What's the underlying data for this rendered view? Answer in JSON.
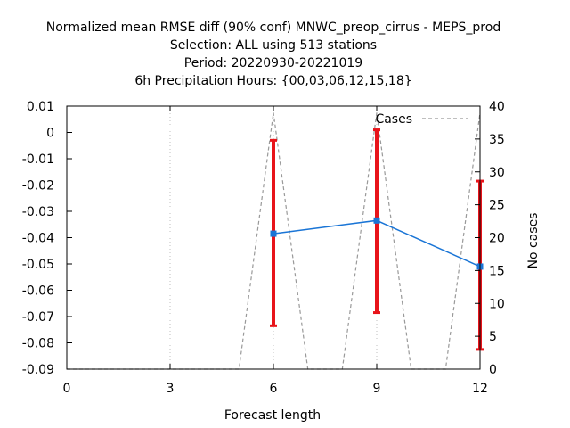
{
  "chart_data": {
    "type": "line",
    "title_lines": [
      "Normalized mean RMSE diff (90% conf) MNWC_preop_cirrus - MEPS_prod",
      "Selection: ALL using   513 stations",
      "Period: 20220930-20221019",
      "6h Precipitation   Hours: {00,03,06,12,15,18}"
    ],
    "xlabel": "Forecast length",
    "ylabel_right": "No cases",
    "xlim": [
      0,
      12
    ],
    "ylim": [
      -0.09,
      0.01
    ],
    "y2lim": [
      0,
      40
    ],
    "x_ticks": [
      0,
      3,
      6,
      9,
      12
    ],
    "x_tick_labels": [
      "0",
      "3",
      "6",
      "9",
      "12"
    ],
    "y_ticks": [
      0.01,
      0,
      -0.01,
      -0.02,
      -0.03,
      -0.04,
      -0.05,
      -0.06,
      -0.07,
      -0.08,
      -0.09
    ],
    "y_tick_labels": [
      "0.01",
      "0",
      "-0.01",
      "-0.02",
      "-0.03",
      "-0.04",
      "-0.05",
      "-0.06",
      "-0.07",
      "-0.08",
      "-0.09"
    ],
    "y2_ticks": [
      40,
      35,
      30,
      25,
      20,
      15,
      10,
      5,
      0
    ],
    "y2_tick_labels": [
      "40",
      "35",
      "30",
      "25",
      "20",
      "15",
      "10",
      "5",
      "0"
    ],
    "grid": true,
    "legend_position": "top-right",
    "series": [
      {
        "color": "#1a75d6",
        "x": [
          6,
          9,
          12
        ],
        "y": [
          -0.0385,
          -0.0335,
          -0.051
        ],
        "err_low": [
          -0.0735,
          -0.0685,
          -0.0825
        ],
        "err_high": [
          -0.003,
          0.001,
          -0.0185
        ],
        "err_color": "#e8141a"
      },
      {
        "name": "Cases",
        "axis": "right",
        "style": "dashed",
        "color": "#999999",
        "x": [
          0,
          5,
          6,
          7,
          8,
          9,
          10,
          11,
          12
        ],
        "y": [
          0,
          0,
          39,
          0,
          0,
          39,
          0,
          0,
          39
        ]
      }
    ]
  }
}
